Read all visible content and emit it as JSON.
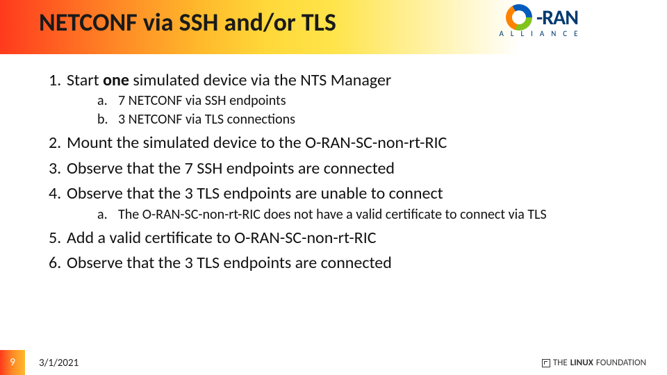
{
  "header": {
    "title": "NETCONF via SSH and/or TLS",
    "gradient_colors": [
      "#ff3a1d",
      "#ff8a26",
      "#ffb92b",
      "#ffd83a",
      "#ffe44a",
      "#ffffff"
    ]
  },
  "logo": {
    "text_prefix": "-",
    "text_main": "RAN",
    "subtitle": "ALLIANCE",
    "ring_colors": [
      "#005bbb",
      "#80c41c",
      "#ff8200"
    ],
    "text_color": "#003a70"
  },
  "content": {
    "items": [
      {
        "num": "1.",
        "text_pre": "Start ",
        "bold": "one",
        "text_post": " simulated device via the NTS Manager",
        "sub": [
          {
            "let": "a.",
            "text": "7 NETCONF via SSH endpoints"
          },
          {
            "let": "b.",
            "text": "3 NETCONF via TLS connections"
          }
        ]
      },
      {
        "num": "2.",
        "text": "Mount the simulated device to the O-RAN-SC-non-rt-RIC"
      },
      {
        "num": "3.",
        "text": "Observe that the 7 SSH endpoints are connected"
      },
      {
        "num": "4.",
        "text": "Observe that the 3 TLS endpoints are unable to connect",
        "sub": [
          {
            "let": "a.",
            "text": "The O-RAN-SC-non-rt-RIC does not have a valid certificate to connect via TLS"
          }
        ]
      },
      {
        "num": "5.",
        "text": "Add a valid certificate to O-RAN-SC-non-rt-RIC"
      },
      {
        "num": "6.",
        "text": "Observe that the 3 TLS endpoints are connected"
      }
    ],
    "l1_fontsize": 24,
    "l2_fontsize": 20,
    "text_color": "#111111"
  },
  "footer": {
    "page": "9",
    "date": "3/1/2021",
    "linux_prefix": "THE",
    "linux_bold": "LINUX",
    "linux_suffix": "FOUNDATION",
    "corner_gradient": [
      "#ff3a1d",
      "#ff8a26",
      "#ffb92b"
    ]
  }
}
